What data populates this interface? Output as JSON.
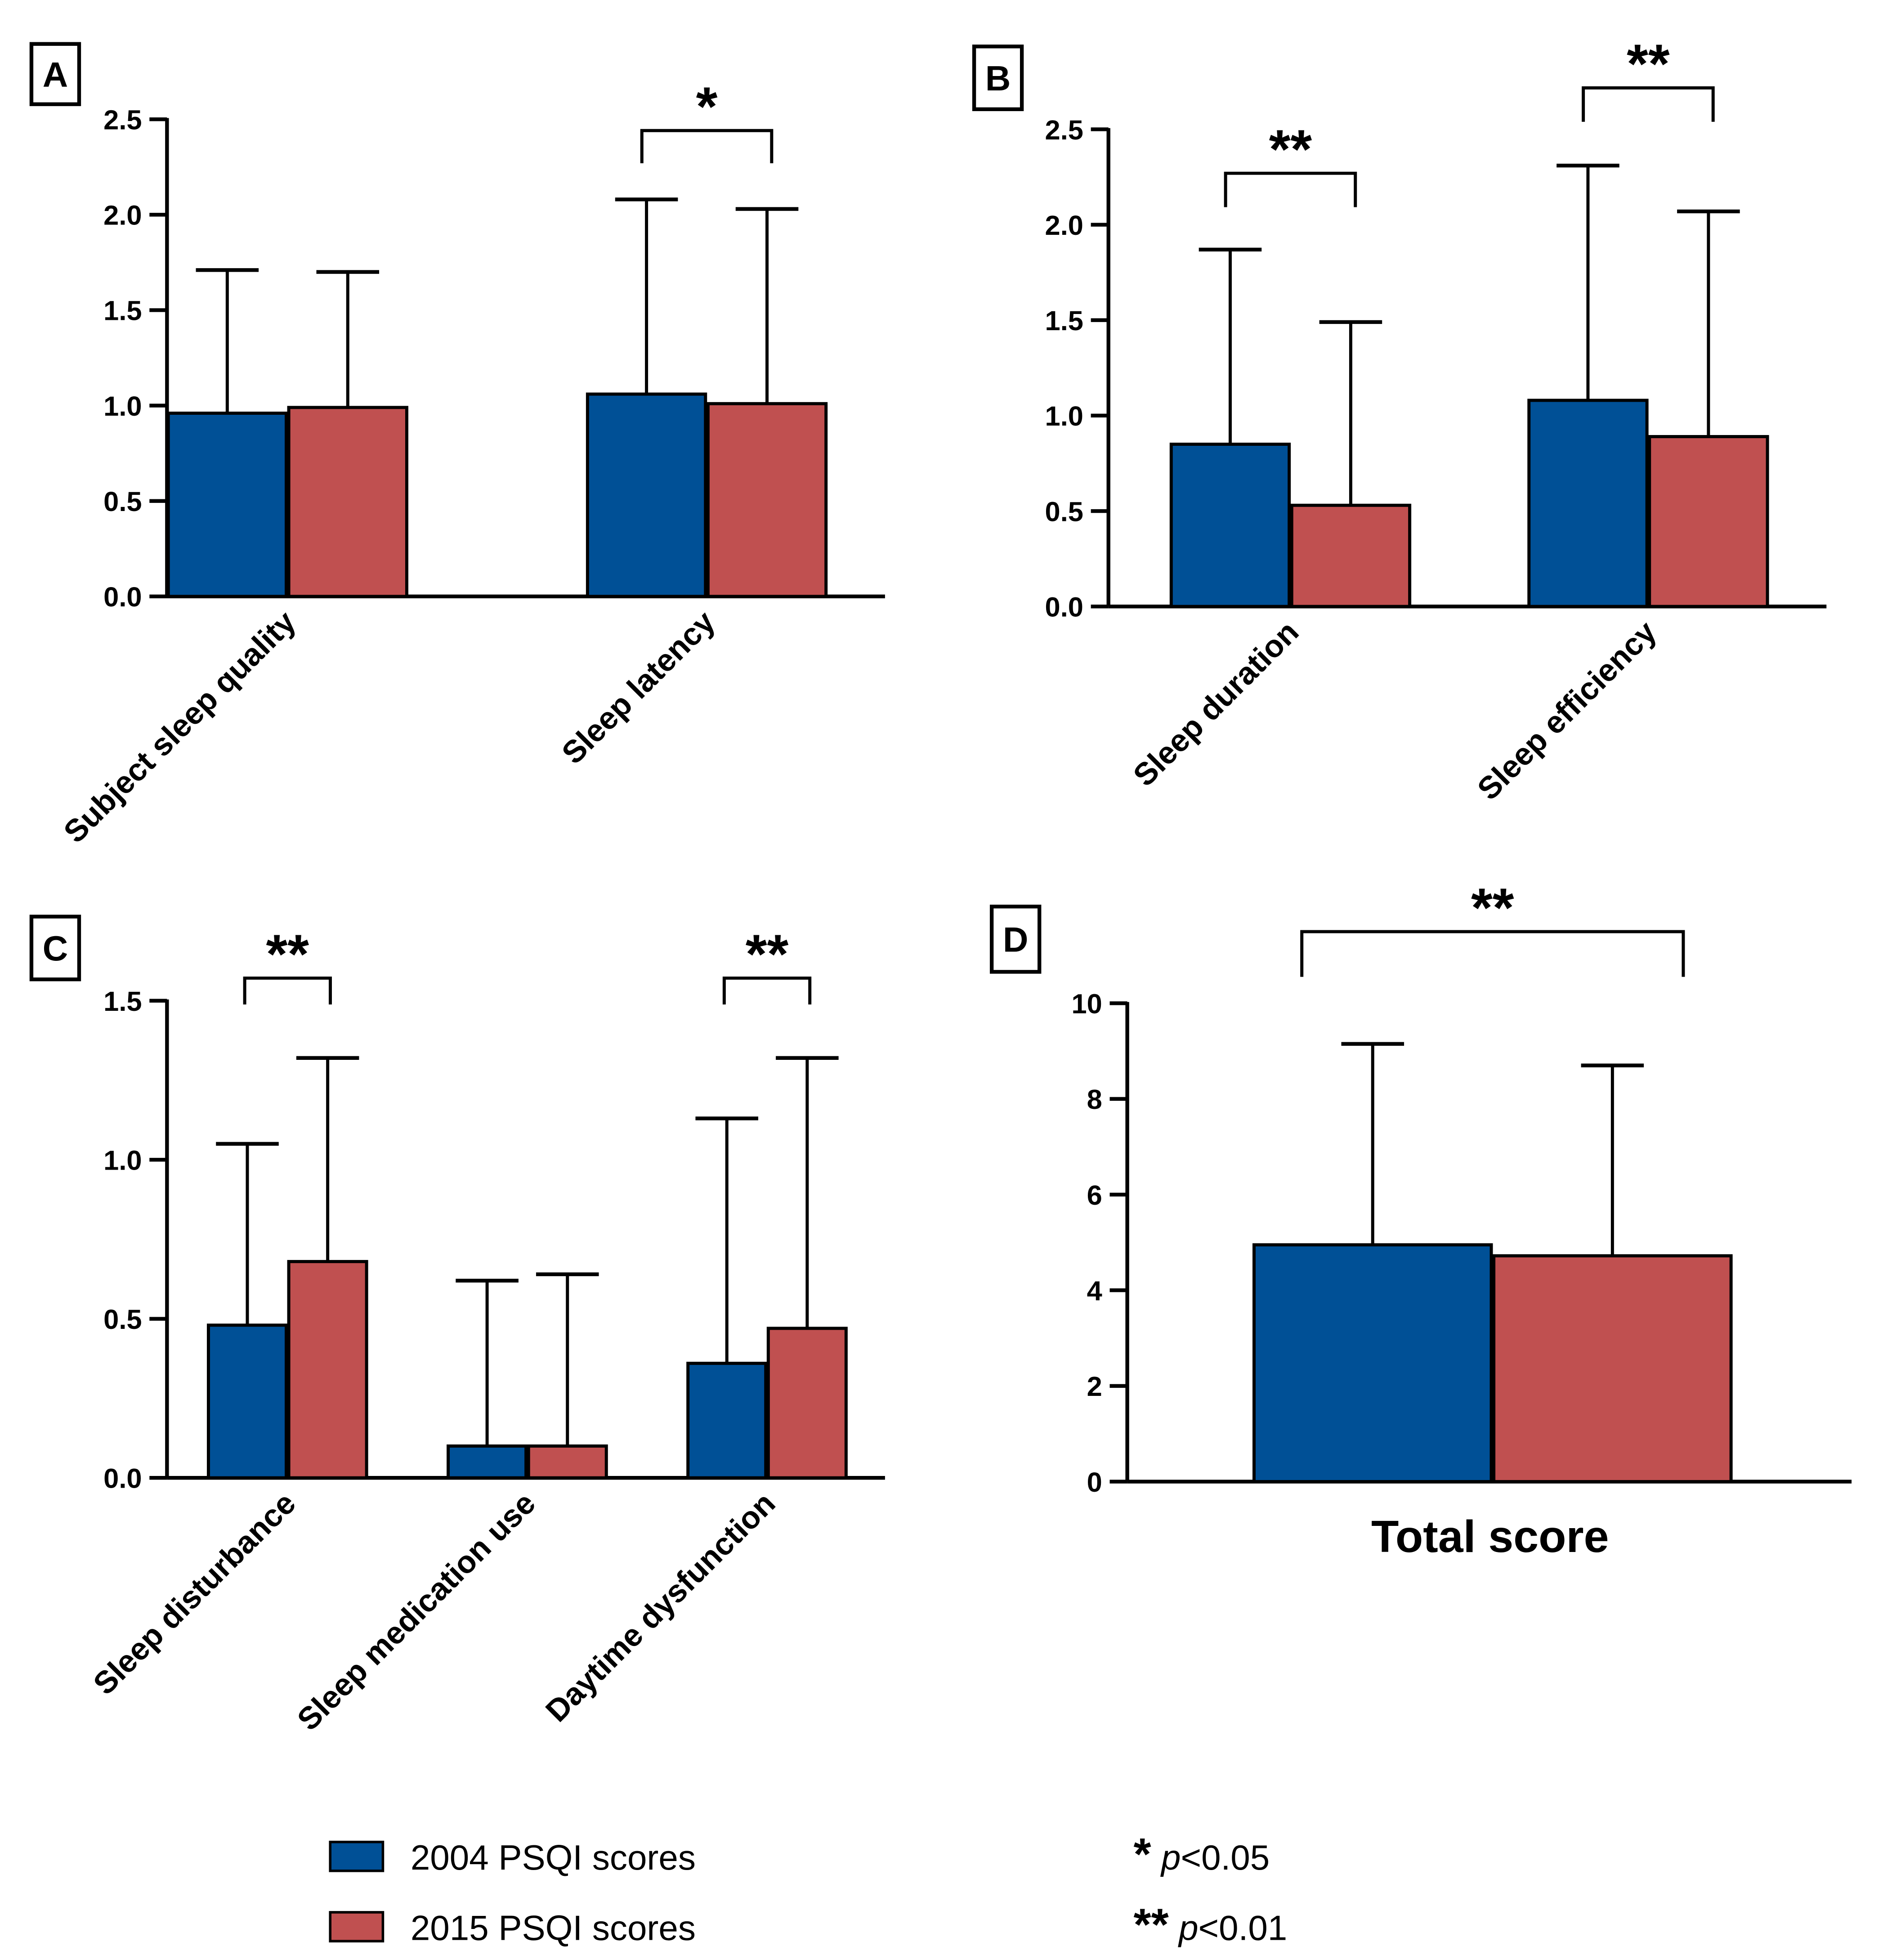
{
  "colors": {
    "s2004": "#005096",
    "s2015": "#C05050"
  },
  "legend": {
    "series": [
      "2004 PSQI scores",
      "2015 PSQI scores"
    ],
    "sig": [
      {
        "stars": "*",
        "p": "p",
        "text": "<0.05"
      },
      {
        "stars": "**",
        "p": "p",
        "text": "<0.01"
      }
    ]
  },
  "chart_data": [
    {
      "panel": "A",
      "type": "bar",
      "ylim": [
        0,
        2.5
      ],
      "yticks": [
        "0.0",
        "0.5",
        "1.0",
        "1.5",
        "2.0",
        "2.5"
      ],
      "categories": [
        "Subject sleep quality",
        "Sleep latency"
      ],
      "series": [
        {
          "name": "2004 PSQI scores",
          "values": [
            0.96,
            1.06
          ],
          "err_upper": [
            1.71,
            2.08
          ]
        },
        {
          "name": "2015 PSQI scores",
          "values": [
            0.99,
            1.01
          ],
          "err_upper": [
            1.7,
            2.03
          ]
        }
      ],
      "significance": [
        {
          "category": 1,
          "label": "*"
        }
      ]
    },
    {
      "panel": "B",
      "type": "bar",
      "ylim": [
        0,
        2.5
      ],
      "yticks": [
        "0.0",
        "0.5",
        "1.0",
        "1.5",
        "2.0",
        "2.5"
      ],
      "categories": [
        "Sleep duration",
        "Sleep efficiency"
      ],
      "series": [
        {
          "name": "2004 PSQI scores",
          "values": [
            0.85,
            1.08
          ],
          "err_upper": [
            1.87,
            2.31
          ]
        },
        {
          "name": "2015 PSQI scores",
          "values": [
            0.53,
            0.89
          ],
          "err_upper": [
            1.49,
            2.07
          ]
        }
      ],
      "significance": [
        {
          "category": 0,
          "label": "**"
        },
        {
          "category": 1,
          "label": "**"
        }
      ]
    },
    {
      "panel": "C",
      "type": "bar",
      "ylim": [
        0,
        1.5
      ],
      "yticks": [
        "0.0",
        "0.5",
        "1.0",
        "1.5"
      ],
      "categories": [
        "Sleep disturbance",
        "Sleep medication use",
        "Daytime dysfunction"
      ],
      "series": [
        {
          "name": "2004 PSQI scores",
          "values": [
            0.48,
            0.1,
            0.36
          ],
          "err_upper": [
            1.05,
            0.62,
            1.13
          ]
        },
        {
          "name": "2015 PSQI scores",
          "values": [
            0.68,
            0.1,
            0.47
          ],
          "err_upper": [
            1.32,
            0.64,
            1.32
          ]
        }
      ],
      "significance": [
        {
          "category": 0,
          "label": "**"
        },
        {
          "category": 2,
          "label": "**"
        }
      ]
    },
    {
      "panel": "D",
      "type": "bar",
      "ylim": [
        0,
        10
      ],
      "yticks": [
        "0",
        "2",
        "4",
        "6",
        "8",
        "10"
      ],
      "categories": [
        "Total score"
      ],
      "series": [
        {
          "name": "2004 PSQI scores",
          "values": [
            4.95
          ],
          "err_upper": [
            9.15
          ]
        },
        {
          "name": "2015 PSQI scores",
          "values": [
            4.72
          ],
          "err_upper": [
            8.7
          ]
        }
      ],
      "significance": [
        {
          "category": 0,
          "label": "**"
        }
      ]
    }
  ]
}
